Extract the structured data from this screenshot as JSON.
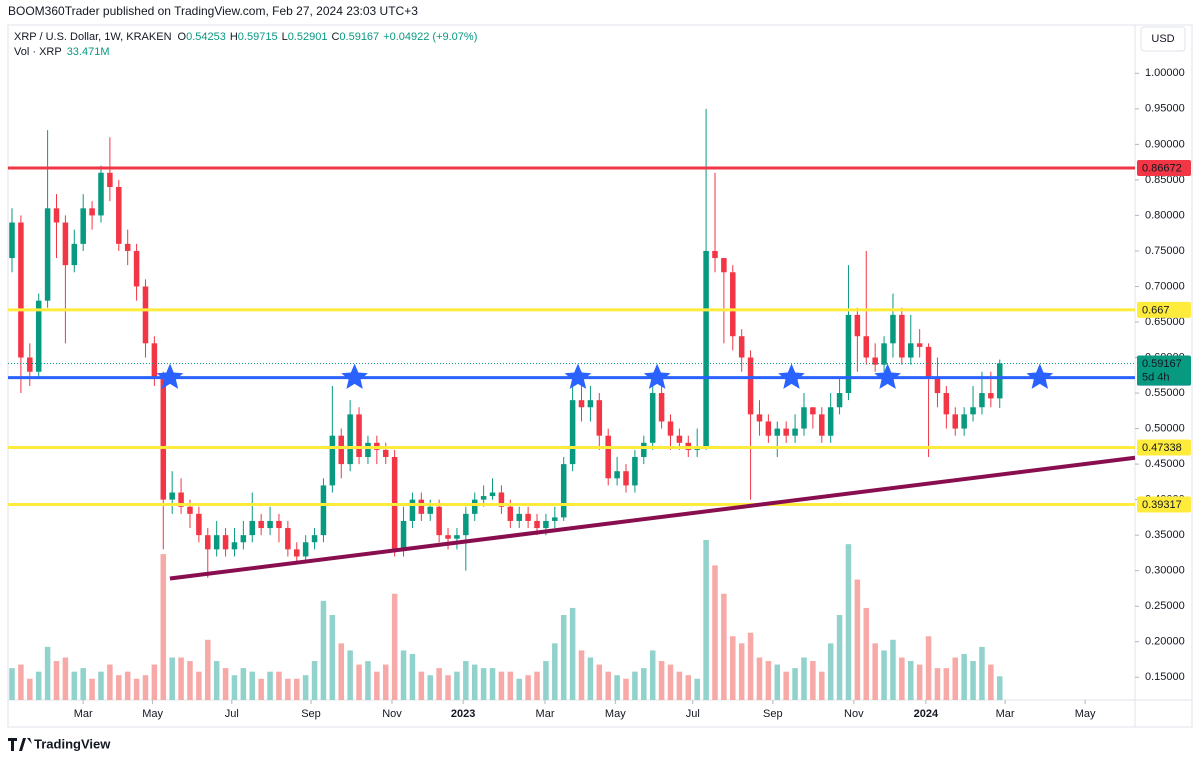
{
  "chart_data": {
    "type": "candlestick",
    "published": "BOOM360Trader published on TradingView.com, Feb 27, 2024 23:03 UTC+3",
    "symbol": "XRP / U.S. Dollar, 1W, KRAKEN",
    "ohlc": [
      {
        "label": "O",
        "value": 0.54253
      },
      {
        "label": "H",
        "value": 0.59715
      },
      {
        "label": "L",
        "value": 0.52901
      },
      {
        "label": "C",
        "value": 0.59167
      }
    ],
    "change": "+0.04922 (+9.07%)",
    "volume_label": "Vol · XRP",
    "volume_last": "33.471M",
    "currency": "USD",
    "footer": "TradingView",
    "up_color": "#089981",
    "down_color": "#f23645",
    "volume_up_color": "#92d2cc",
    "volume_down_color": "#f7a9a7",
    "xlim": [
      -0.45,
      126.2
    ],
    "xticks": [
      {
        "value": 8,
        "label": "Mar"
      },
      {
        "value": 15.8,
        "label": "May"
      },
      {
        "value": 24.7,
        "label": "Jul"
      },
      {
        "value": 33.6,
        "label": "Sep"
      },
      {
        "value": 42.7,
        "label": "Nov"
      },
      {
        "value": 50.7,
        "label": "2023"
      },
      {
        "value": 59.9,
        "label": "Mar"
      },
      {
        "value": 67.8,
        "label": "May"
      },
      {
        "value": 76.5,
        "label": "Jul"
      },
      {
        "value": 85.5,
        "label": "Sep"
      },
      {
        "value": 94.6,
        "label": "Nov"
      },
      {
        "value": 102.7,
        "label": "2024"
      },
      {
        "value": 111.6,
        "label": "Mar"
      },
      {
        "value": 120.6,
        "label": "May"
      }
    ],
    "ylim": [
      0.118,
      1.068
    ],
    "yticks": [
      {
        "value": 0.15,
        "label": "0.15000"
      },
      {
        "value": 0.2,
        "label": "0.20000"
      },
      {
        "value": 0.25,
        "label": "0.25000"
      },
      {
        "value": 0.3,
        "label": "0.30000"
      },
      {
        "value": 0.35,
        "label": "0.35000"
      },
      {
        "value": 0.4,
        "label": "0.40000"
      },
      {
        "value": 0.45,
        "label": "0.45000"
      },
      {
        "value": 0.5,
        "label": "0.50000"
      },
      {
        "value": 0.55,
        "label": "0.55000"
      },
      {
        "value": 0.6,
        "label": "0.60000"
      },
      {
        "value": 0.65,
        "label": "0.65000"
      },
      {
        "value": 0.7,
        "label": "0.70000"
      },
      {
        "value": 0.75,
        "label": "0.75000"
      },
      {
        "value": 0.8,
        "label": "0.80000"
      },
      {
        "value": 0.85,
        "label": "0.85000"
      },
      {
        "value": 0.9,
        "label": "0.90000"
      },
      {
        "value": 0.95,
        "label": "0.95000"
      },
      {
        "value": 1.0,
        "label": "1.00000"
      }
    ],
    "grid": false,
    "volume_ylim": [
      0,
      240
    ],
    "open": [
      0.74,
      0.79,
      0.6,
      0.58,
      0.68,
      0.81,
      0.79,
      0.73,
      0.76,
      0.81,
      0.8,
      0.86,
      0.84,
      0.76,
      0.75,
      0.7,
      0.62,
      0.57,
      0.4,
      0.41,
      0.39,
      0.38,
      0.35,
      0.33,
      0.35,
      0.33,
      0.34,
      0.35,
      0.37,
      0.36,
      0.37,
      0.36,
      0.33,
      0.32,
      0.34,
      0.35,
      0.42,
      0.49,
      0.45,
      0.52,
      0.46,
      0.48,
      0.47,
      0.46,
      0.33,
      0.37,
      0.4,
      0.38,
      0.39,
      0.35,
      0.345,
      0.35,
      0.38,
      0.4,
      0.405,
      0.41,
      0.39,
      0.37,
      0.38,
      0.37,
      0.36,
      0.37,
      0.375,
      0.45,
      0.54,
      0.53,
      0.54,
      0.49,
      0.43,
      0.44,
      0.42,
      0.46,
      0.48,
      0.55,
      0.51,
      0.49,
      0.48,
      0.47,
      0.475,
      0.75,
      0.74,
      0.72,
      0.63,
      0.6,
      0.52,
      0.51,
      0.49,
      0.5,
      0.49,
      0.5,
      0.53,
      0.52,
      0.49,
      0.53,
      0.55,
      0.66,
      0.63,
      0.6,
      0.59,
      0.62,
      0.66,
      0.6,
      0.62,
      0.615,
      0.57,
      0.55,
      0.52,
      0.5,
      0.52,
      0.53,
      0.55,
      0.54253
    ],
    "high": [
      0.81,
      0.8,
      0.62,
      0.69,
      0.92,
      0.83,
      0.8,
      0.78,
      0.83,
      0.82,
      0.87,
      0.91,
      0.85,
      0.78,
      0.76,
      0.71,
      0.63,
      0.58,
      0.44,
      0.43,
      0.4,
      0.39,
      0.36,
      0.37,
      0.36,
      0.36,
      0.37,
      0.41,
      0.38,
      0.39,
      0.38,
      0.37,
      0.34,
      0.35,
      0.36,
      0.43,
      0.56,
      0.5,
      0.54,
      0.53,
      0.49,
      0.49,
      0.48,
      0.47,
      0.39,
      0.41,
      0.41,
      0.4,
      0.4,
      0.36,
      0.36,
      0.39,
      0.41,
      0.42,
      0.43,
      0.42,
      0.4,
      0.39,
      0.39,
      0.38,
      0.38,
      0.39,
      0.46,
      0.56,
      0.58,
      0.56,
      0.55,
      0.5,
      0.46,
      0.45,
      0.47,
      0.49,
      0.56,
      0.56,
      0.52,
      0.5,
      0.49,
      0.5,
      0.95,
      0.86,
      0.74,
      0.73,
      0.64,
      0.61,
      0.54,
      0.52,
      0.51,
      0.51,
      0.52,
      0.55,
      0.53,
      0.53,
      0.55,
      0.57,
      0.73,
      0.67,
      0.75,
      0.62,
      0.63,
      0.69,
      0.67,
      0.66,
      0.64,
      0.62,
      0.6,
      0.56,
      0.53,
      0.53,
      0.56,
      0.58,
      0.58,
      0.59715
    ],
    "low": [
      0.72,
      0.55,
      0.56,
      0.57,
      0.67,
      0.74,
      0.62,
      0.72,
      0.75,
      0.78,
      0.79,
      0.82,
      0.75,
      0.73,
      0.68,
      0.6,
      0.56,
      0.33,
      0.38,
      0.38,
      0.36,
      0.34,
      0.29,
      0.32,
      0.32,
      0.32,
      0.33,
      0.34,
      0.35,
      0.35,
      0.34,
      0.32,
      0.31,
      0.31,
      0.33,
      0.34,
      0.41,
      0.43,
      0.44,
      0.45,
      0.45,
      0.45,
      0.45,
      0.32,
      0.32,
      0.36,
      0.37,
      0.37,
      0.34,
      0.33,
      0.33,
      0.3,
      0.37,
      0.39,
      0.4,
      0.38,
      0.36,
      0.36,
      0.36,
      0.35,
      0.35,
      0.36,
      0.37,
      0.44,
      0.51,
      0.51,
      0.47,
      0.42,
      0.42,
      0.41,
      0.41,
      0.45,
      0.47,
      0.5,
      0.47,
      0.47,
      0.46,
      0.46,
      0.47,
      0.72,
      0.62,
      0.61,
      0.58,
      0.4,
      0.49,
      0.48,
      0.46,
      0.48,
      0.48,
      0.49,
      0.5,
      0.48,
      0.48,
      0.52,
      0.54,
      0.58,
      0.59,
      0.58,
      0.58,
      0.6,
      0.59,
      0.59,
      0.6,
      0.46,
      0.53,
      0.5,
      0.49,
      0.49,
      0.51,
      0.52,
      0.53,
      0.52901
    ],
    "close": [
      0.79,
      0.6,
      0.58,
      0.68,
      0.81,
      0.79,
      0.73,
      0.76,
      0.81,
      0.8,
      0.86,
      0.84,
      0.76,
      0.75,
      0.7,
      0.62,
      0.57,
      0.4,
      0.41,
      0.39,
      0.38,
      0.35,
      0.33,
      0.35,
      0.33,
      0.34,
      0.35,
      0.37,
      0.36,
      0.37,
      0.36,
      0.33,
      0.32,
      0.34,
      0.35,
      0.42,
      0.49,
      0.45,
      0.52,
      0.46,
      0.48,
      0.47,
      0.46,
      0.33,
      0.37,
      0.4,
      0.38,
      0.39,
      0.35,
      0.345,
      0.35,
      0.38,
      0.4,
      0.405,
      0.41,
      0.39,
      0.37,
      0.38,
      0.37,
      0.36,
      0.37,
      0.375,
      0.45,
      0.54,
      0.53,
      0.54,
      0.49,
      0.43,
      0.44,
      0.42,
      0.46,
      0.48,
      0.55,
      0.51,
      0.49,
      0.48,
      0.47,
      0.475,
      0.75,
      0.74,
      0.72,
      0.63,
      0.6,
      0.52,
      0.51,
      0.49,
      0.5,
      0.49,
      0.5,
      0.53,
      0.52,
      0.49,
      0.53,
      0.55,
      0.66,
      0.63,
      0.6,
      0.59,
      0.62,
      0.66,
      0.6,
      0.62,
      0.615,
      0.57,
      0.55,
      0.52,
      0.5,
      0.52,
      0.53,
      0.55,
      0.5425,
      0.59167
    ],
    "volume": [
      45,
      50,
      30,
      40,
      75,
      55,
      60,
      40,
      45,
      30,
      40,
      50,
      35,
      40,
      30,
      35,
      50,
      206,
      60,
      60,
      55,
      40,
      85,
      55,
      45,
      35,
      45,
      40,
      30,
      40,
      40,
      30,
      30,
      35,
      55,
      140,
      120,
      80,
      70,
      50,
      55,
      40,
      50,
      150,
      70,
      65,
      40,
      35,
      45,
      35,
      40,
      55,
      50,
      45,
      45,
      40,
      40,
      30,
      35,
      40,
      55,
      80,
      120,
      130,
      70,
      60,
      50,
      40,
      35,
      30,
      40,
      45,
      70,
      55,
      50,
      40,
      35,
      30,
      226,
      190,
      150,
      90,
      80,
      95,
      60,
      55,
      50,
      40,
      45,
      60,
      55,
      40,
      80,
      120,
      220,
      170,
      130,
      80,
      70,
      85,
      60,
      55,
      50,
      90,
      45,
      45,
      60,
      65,
      55,
      75,
      50,
      33.471
    ],
    "levels": [
      {
        "value": 0.86672,
        "color": "#f23645"
      },
      {
        "value": 0.667,
        "color": "#ffeb3b"
      },
      {
        "value": 0.57179,
        "color": "#2962ff"
      },
      {
        "value": 0.47338,
        "color": "#ffeb3b"
      },
      {
        "value": 0.39317,
        "color": "#ffeb3b"
      }
    ],
    "last": {
      "value": 0.59167,
      "countdown": "5d 4h",
      "color": "#089981"
    },
    "trendline": {
      "x": [
        17.75,
        126.2
      ],
      "y": [
        0.289,
        0.459
      ],
      "color": "#880e4f"
    },
    "stars": {
      "y": 0.57179,
      "x": [
        17.75,
        38.5,
        63.6,
        72.5,
        87.6,
        98.4,
        115.5
      ],
      "color": "#2962ff"
    }
  }
}
